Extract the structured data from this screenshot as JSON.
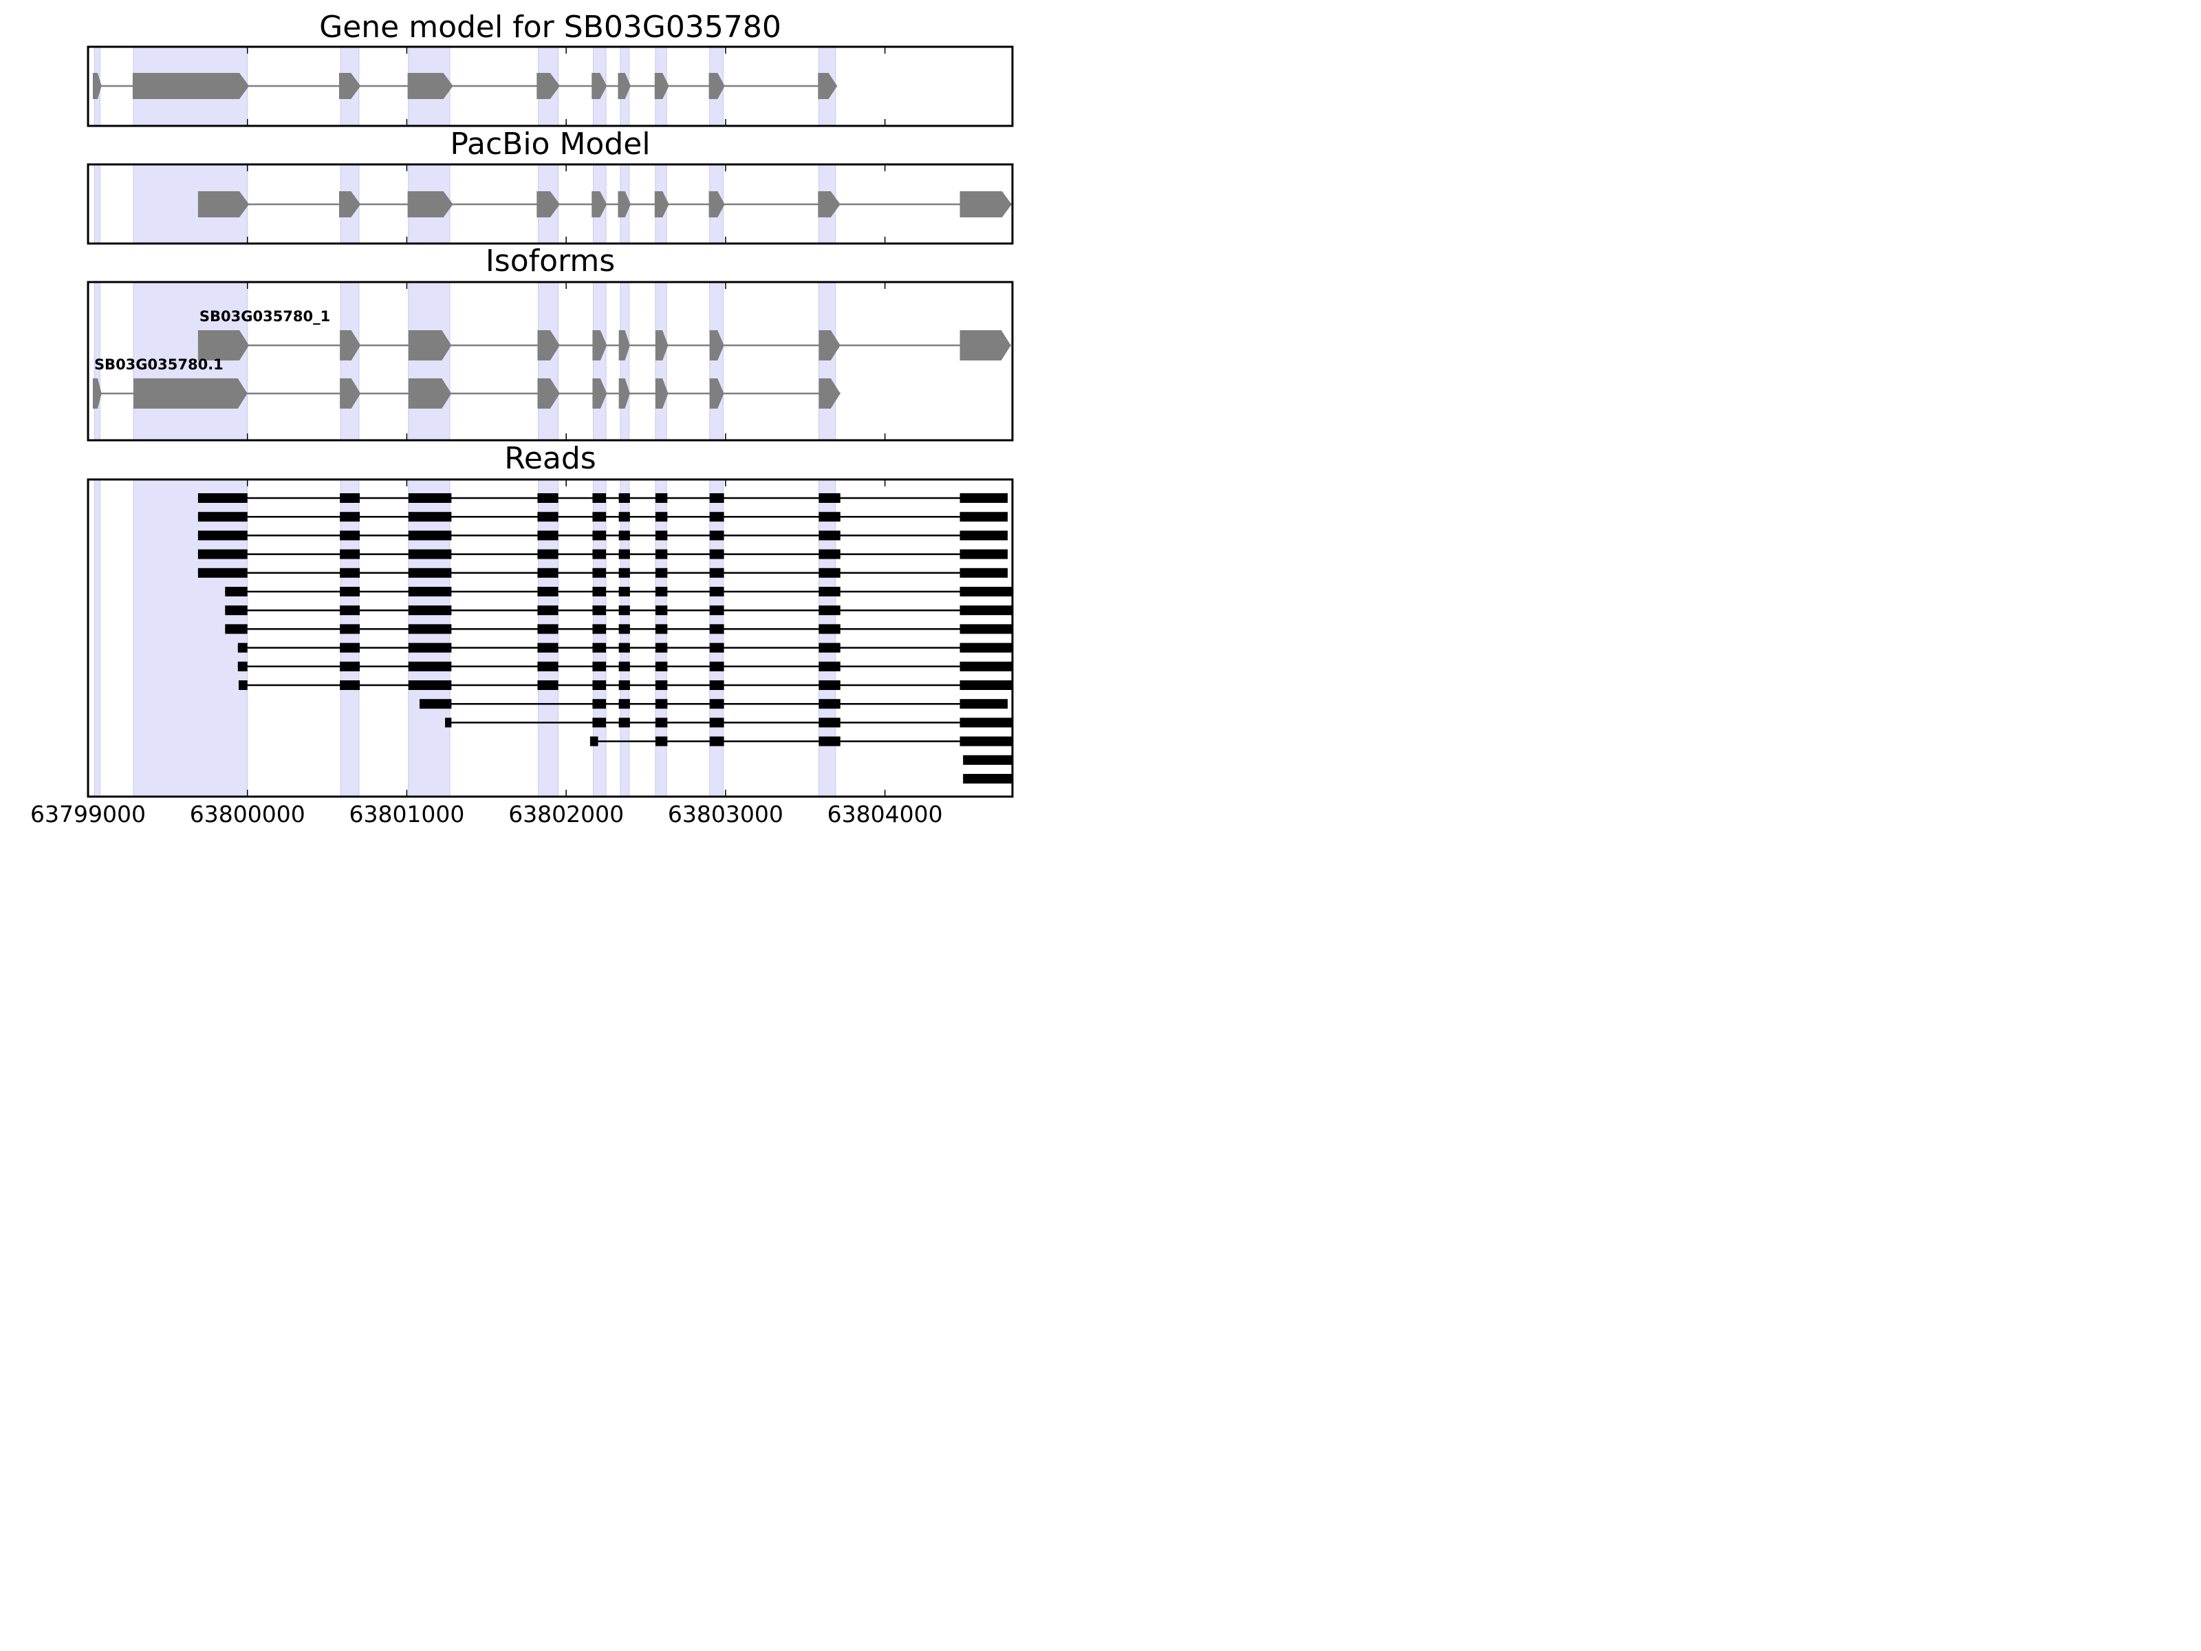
{
  "chart_data": {
    "type": "gene-track",
    "xlim": [
      63799000,
      63804800
    ],
    "xticks": [
      63799000,
      63800000,
      63801000,
      63802000,
      63803000,
      63804000
    ],
    "xtick_labels": [
      "63799000",
      "63800000",
      "63801000",
      "63802000",
      "63803000",
      "63804000"
    ],
    "exon_bands": [
      [
        63799040,
        63799075
      ],
      [
        63799285,
        63800000
      ],
      [
        63800585,
        63800700
      ],
      [
        63801010,
        63801270
      ],
      [
        63801825,
        63801950
      ],
      [
        63802170,
        63802250
      ],
      [
        63802340,
        63802395
      ],
      [
        63802560,
        63802630
      ],
      [
        63802900,
        63802985
      ],
      [
        63803585,
        63803690
      ]
    ],
    "panels": [
      {
        "title": "Gene model for SB03G035780",
        "models": [
          {
            "label": "",
            "exons": [
              [
                63799030,
                63799085
              ],
              [
                63799280,
                63800010
              ],
              [
                63800575,
                63800710
              ],
              [
                63801005,
                63801290
              ],
              [
                63801815,
                63801960
              ],
              [
                63802160,
                63802255
              ],
              [
                63802325,
                63802405
              ],
              [
                63802555,
                63802645
              ],
              [
                63802895,
                63802995
              ],
              [
                63803580,
                63803700
              ]
            ]
          }
        ]
      },
      {
        "title": "PacBio Model",
        "models": [
          {
            "label": "",
            "exons": [
              [
                63799690,
                63800010
              ],
              [
                63800575,
                63800710
              ],
              [
                63801005,
                63801290
              ],
              [
                63801815,
                63801960
              ],
              [
                63802160,
                63802255
              ],
              [
                63802325,
                63802405
              ],
              [
                63802555,
                63802645
              ],
              [
                63802895,
                63802995
              ],
              [
                63803580,
                63803720
              ],
              [
                63804470,
                63804795
              ]
            ]
          }
        ]
      },
      {
        "title": "Isoforms",
        "models": [
          {
            "label": "SB03G035780_1",
            "exons": [
              [
                63799690,
                63800010
              ],
              [
                63800580,
                63800710
              ],
              [
                63801010,
                63801280
              ],
              [
                63801820,
                63801960
              ],
              [
                63802165,
                63802255
              ],
              [
                63802330,
                63802400
              ],
              [
                63802560,
                63802640
              ],
              [
                63802900,
                63802990
              ],
              [
                63803585,
                63803720
              ],
              [
                63804470,
                63804790
              ]
            ]
          },
          {
            "label": "SB03G035780.1",
            "exons": [
              [
                63799030,
                63799085
              ],
              [
                63799285,
                63800000
              ],
              [
                63800580,
                63800710
              ],
              [
                63801010,
                63801280
              ],
              [
                63801820,
                63801960
              ],
              [
                63802165,
                63802255
              ],
              [
                63802330,
                63802400
              ],
              [
                63802560,
                63802640
              ],
              [
                63802900,
                63802990
              ],
              [
                63803585,
                63803720
              ]
            ]
          }
        ]
      },
      {
        "title": "Reads",
        "reads": [
          {
            "start": 63799690,
            "end": 63804770,
            "first_end": 63800000,
            "internal_from": 0,
            "last_start": 63804470
          },
          {
            "start": 63799690,
            "end": 63804770,
            "first_end": 63800000,
            "internal_from": 0,
            "last_start": 63804470
          },
          {
            "start": 63799690,
            "end": 63804770,
            "first_end": 63800000,
            "internal_from": 0,
            "last_start": 63804470
          },
          {
            "start": 63799690,
            "end": 63804770,
            "first_end": 63800000,
            "internal_from": 0,
            "last_start": 63804470
          },
          {
            "start": 63799690,
            "end": 63804770,
            "first_end": 63800000,
            "internal_from": 0,
            "last_start": 63804470
          },
          {
            "start": 63799860,
            "end": 63804800,
            "first_end": 63800000,
            "internal_from": 0,
            "last_start": 63804470
          },
          {
            "start": 63799860,
            "end": 63804800,
            "first_end": 63800000,
            "internal_from": 0,
            "last_start": 63804470
          },
          {
            "start": 63799860,
            "end": 63804800,
            "first_end": 63800000,
            "internal_from": 0,
            "last_start": 63804470
          },
          {
            "start": 63799940,
            "end": 63804800,
            "first_end": 63800000,
            "internal_from": 0,
            "last_start": 63804470
          },
          {
            "start": 63799940,
            "end": 63804800,
            "first_end": 63800000,
            "internal_from": 0,
            "last_start": 63804470
          },
          {
            "start": 63799945,
            "end": 63804800,
            "first_end": 63800000,
            "internal_from": 0,
            "last_start": 63804470
          },
          {
            "start": 63801080,
            "end": 63804770,
            "first_end": 63801280,
            "internal_from": 3,
            "last_start": 63804470
          },
          {
            "start": 63801240,
            "end": 63804800,
            "first_end": 63801280,
            "internal_from": 3,
            "last_start": 63804470
          },
          {
            "start": 63802150,
            "end": 63804800,
            "first_end": 63802200,
            "internal_from": 5,
            "last_start": 63804470
          },
          {
            "start": 63804490,
            "end": 63804800,
            "first_end": 63804800,
            "internal_from": 99,
            "last_start": 63804490
          },
          {
            "start": 63804490,
            "end": 63804800,
            "first_end": 63804800,
            "internal_from": 99,
            "last_start": 63804490
          }
        ],
        "read_internal_exons": [
          [
            63800580,
            63800705
          ],
          [
            63801010,
            63801280
          ],
          [
            63801820,
            63801950
          ],
          [
            63802165,
            63802250
          ],
          [
            63802330,
            63802400
          ],
          [
            63802560,
            63802635
          ],
          [
            63802900,
            63802990
          ],
          [
            63803585,
            63803720
          ]
        ]
      }
    ]
  }
}
